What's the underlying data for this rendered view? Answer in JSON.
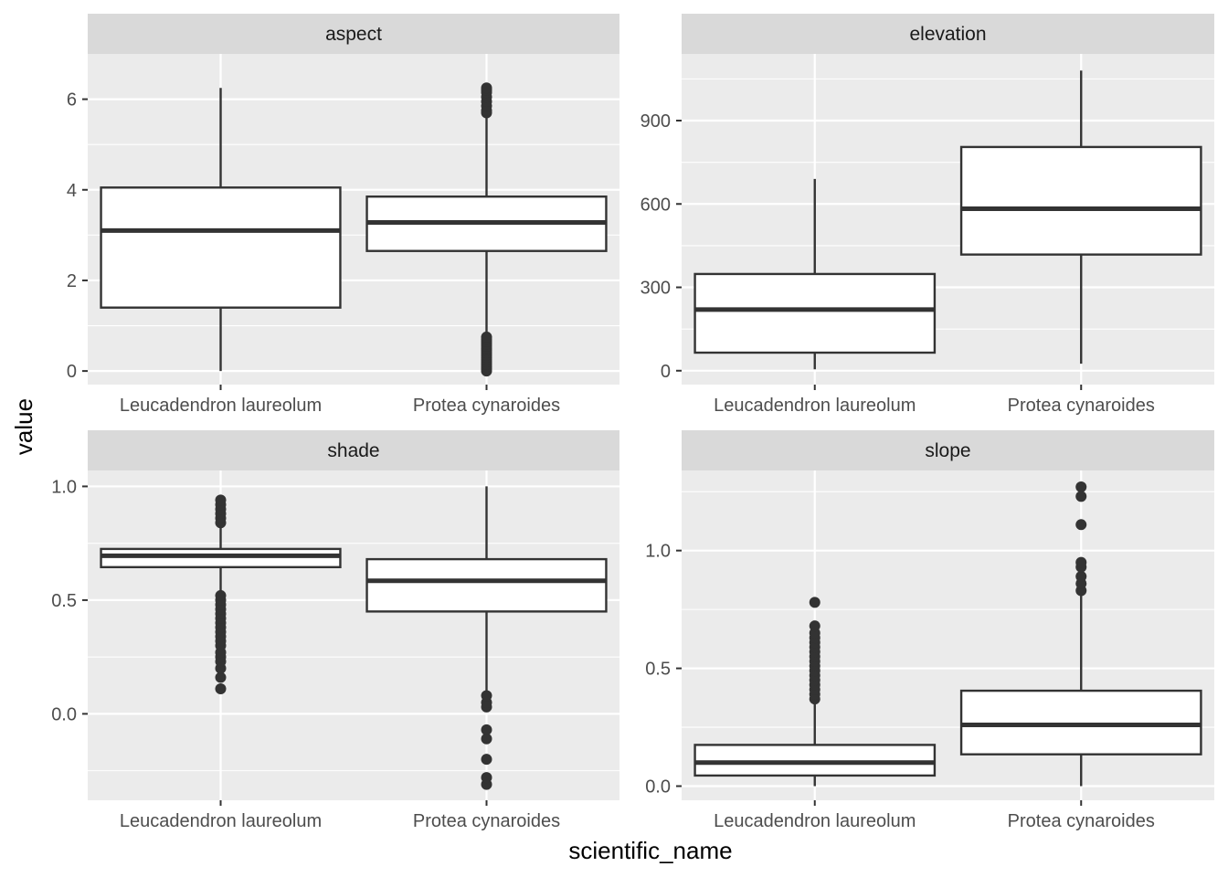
{
  "chart_data": {
    "type": "boxplot",
    "xlabel": "scientific_name",
    "ylabel": "value",
    "categories": [
      "Leucadendron laureolum",
      "Protea cynaroides"
    ],
    "facets": [
      {
        "name": "aspect",
        "ylim": [
          -0.3,
          7.0
        ],
        "yticks": [
          0,
          2,
          4,
          6
        ],
        "ytick_labels": [
          "0",
          "2",
          "4",
          "6"
        ],
        "boxes": [
          {
            "category": "Leucadendron laureolum",
            "whisker_low": 0.0,
            "q1": 1.4,
            "median": 3.1,
            "q3": 4.05,
            "whisker_high": 6.25,
            "outliers": []
          },
          {
            "category": "Protea cynaroides",
            "whisker_low": 0.8,
            "q1": 2.65,
            "median": 3.28,
            "q3": 3.85,
            "whisker_high": 5.65,
            "outliers": [
              0.0,
              0.05,
              0.1,
              0.15,
              0.2,
              0.25,
              0.3,
              0.35,
              0.4,
              0.45,
              0.5,
              0.55,
              0.6,
              0.65,
              0.7,
              0.75,
              5.7,
              5.75,
              5.85,
              5.95,
              6.05,
              6.15,
              6.2,
              6.25
            ]
          }
        ]
      },
      {
        "name": "elevation",
        "ylim": [
          -50,
          1140
        ],
        "yticks": [
          0,
          300,
          600,
          900
        ],
        "ytick_labels": [
          "0",
          "300",
          "600",
          "900"
        ],
        "boxes": [
          {
            "category": "Leucadendron laureolum",
            "whisker_low": 5,
            "q1": 65,
            "median": 220,
            "q3": 348,
            "whisker_high": 690,
            "outliers": []
          },
          {
            "category": "Protea cynaroides",
            "whisker_low": 25,
            "q1": 418,
            "median": 583,
            "q3": 805,
            "whisker_high": 1080,
            "outliers": []
          }
        ]
      },
      {
        "name": "shade",
        "ylim": [
          -0.38,
          1.07
        ],
        "yticks": [
          0.0,
          0.5,
          1.0
        ],
        "ytick_labels": [
          "0.0",
          "0.5",
          "1.0"
        ],
        "boxes": [
          {
            "category": "Leucadendron laureolum",
            "whisker_low": 0.54,
            "q1": 0.645,
            "median": 0.695,
            "q3": 0.725,
            "whisker_high": 0.82,
            "outliers": [
              0.11,
              0.16,
              0.2,
              0.23,
              0.25,
              0.27,
              0.3,
              0.32,
              0.34,
              0.36,
              0.38,
              0.4,
              0.42,
              0.44,
              0.46,
              0.48,
              0.5,
              0.52,
              0.84,
              0.86,
              0.88,
              0.9,
              0.92,
              0.94
            ]
          },
          {
            "category": "Protea cynaroides",
            "whisker_low": 0.1,
            "q1": 0.45,
            "median": 0.585,
            "q3": 0.68,
            "whisker_high": 1.0,
            "outliers": [
              -0.31,
              -0.28,
              -0.2,
              -0.11,
              -0.07,
              0.03,
              0.05,
              0.08
            ]
          }
        ]
      },
      {
        "name": "slope",
        "ylim": [
          -0.06,
          1.34
        ],
        "yticks": [
          0.0,
          0.5,
          1.0
        ],
        "ytick_labels": [
          "0.0",
          "0.5",
          "1.0"
        ],
        "boxes": [
          {
            "category": "Leucadendron laureolum",
            "whisker_low": 0.0,
            "q1": 0.045,
            "median": 0.1,
            "q3": 0.175,
            "whisker_high": 0.36,
            "outliers": [
              0.37,
              0.39,
              0.41,
              0.43,
              0.45,
              0.47,
              0.49,
              0.51,
              0.53,
              0.55,
              0.57,
              0.59,
              0.61,
              0.63,
              0.65,
              0.68,
              0.78
            ]
          },
          {
            "category": "Protea cynaroides",
            "whisker_low": 0.0,
            "q1": 0.135,
            "median": 0.26,
            "q3": 0.405,
            "whisker_high": 0.81,
            "outliers": [
              0.83,
              0.86,
              0.89,
              0.93,
              0.95,
              1.11,
              1.23,
              1.27
            ]
          }
        ]
      }
    ]
  }
}
